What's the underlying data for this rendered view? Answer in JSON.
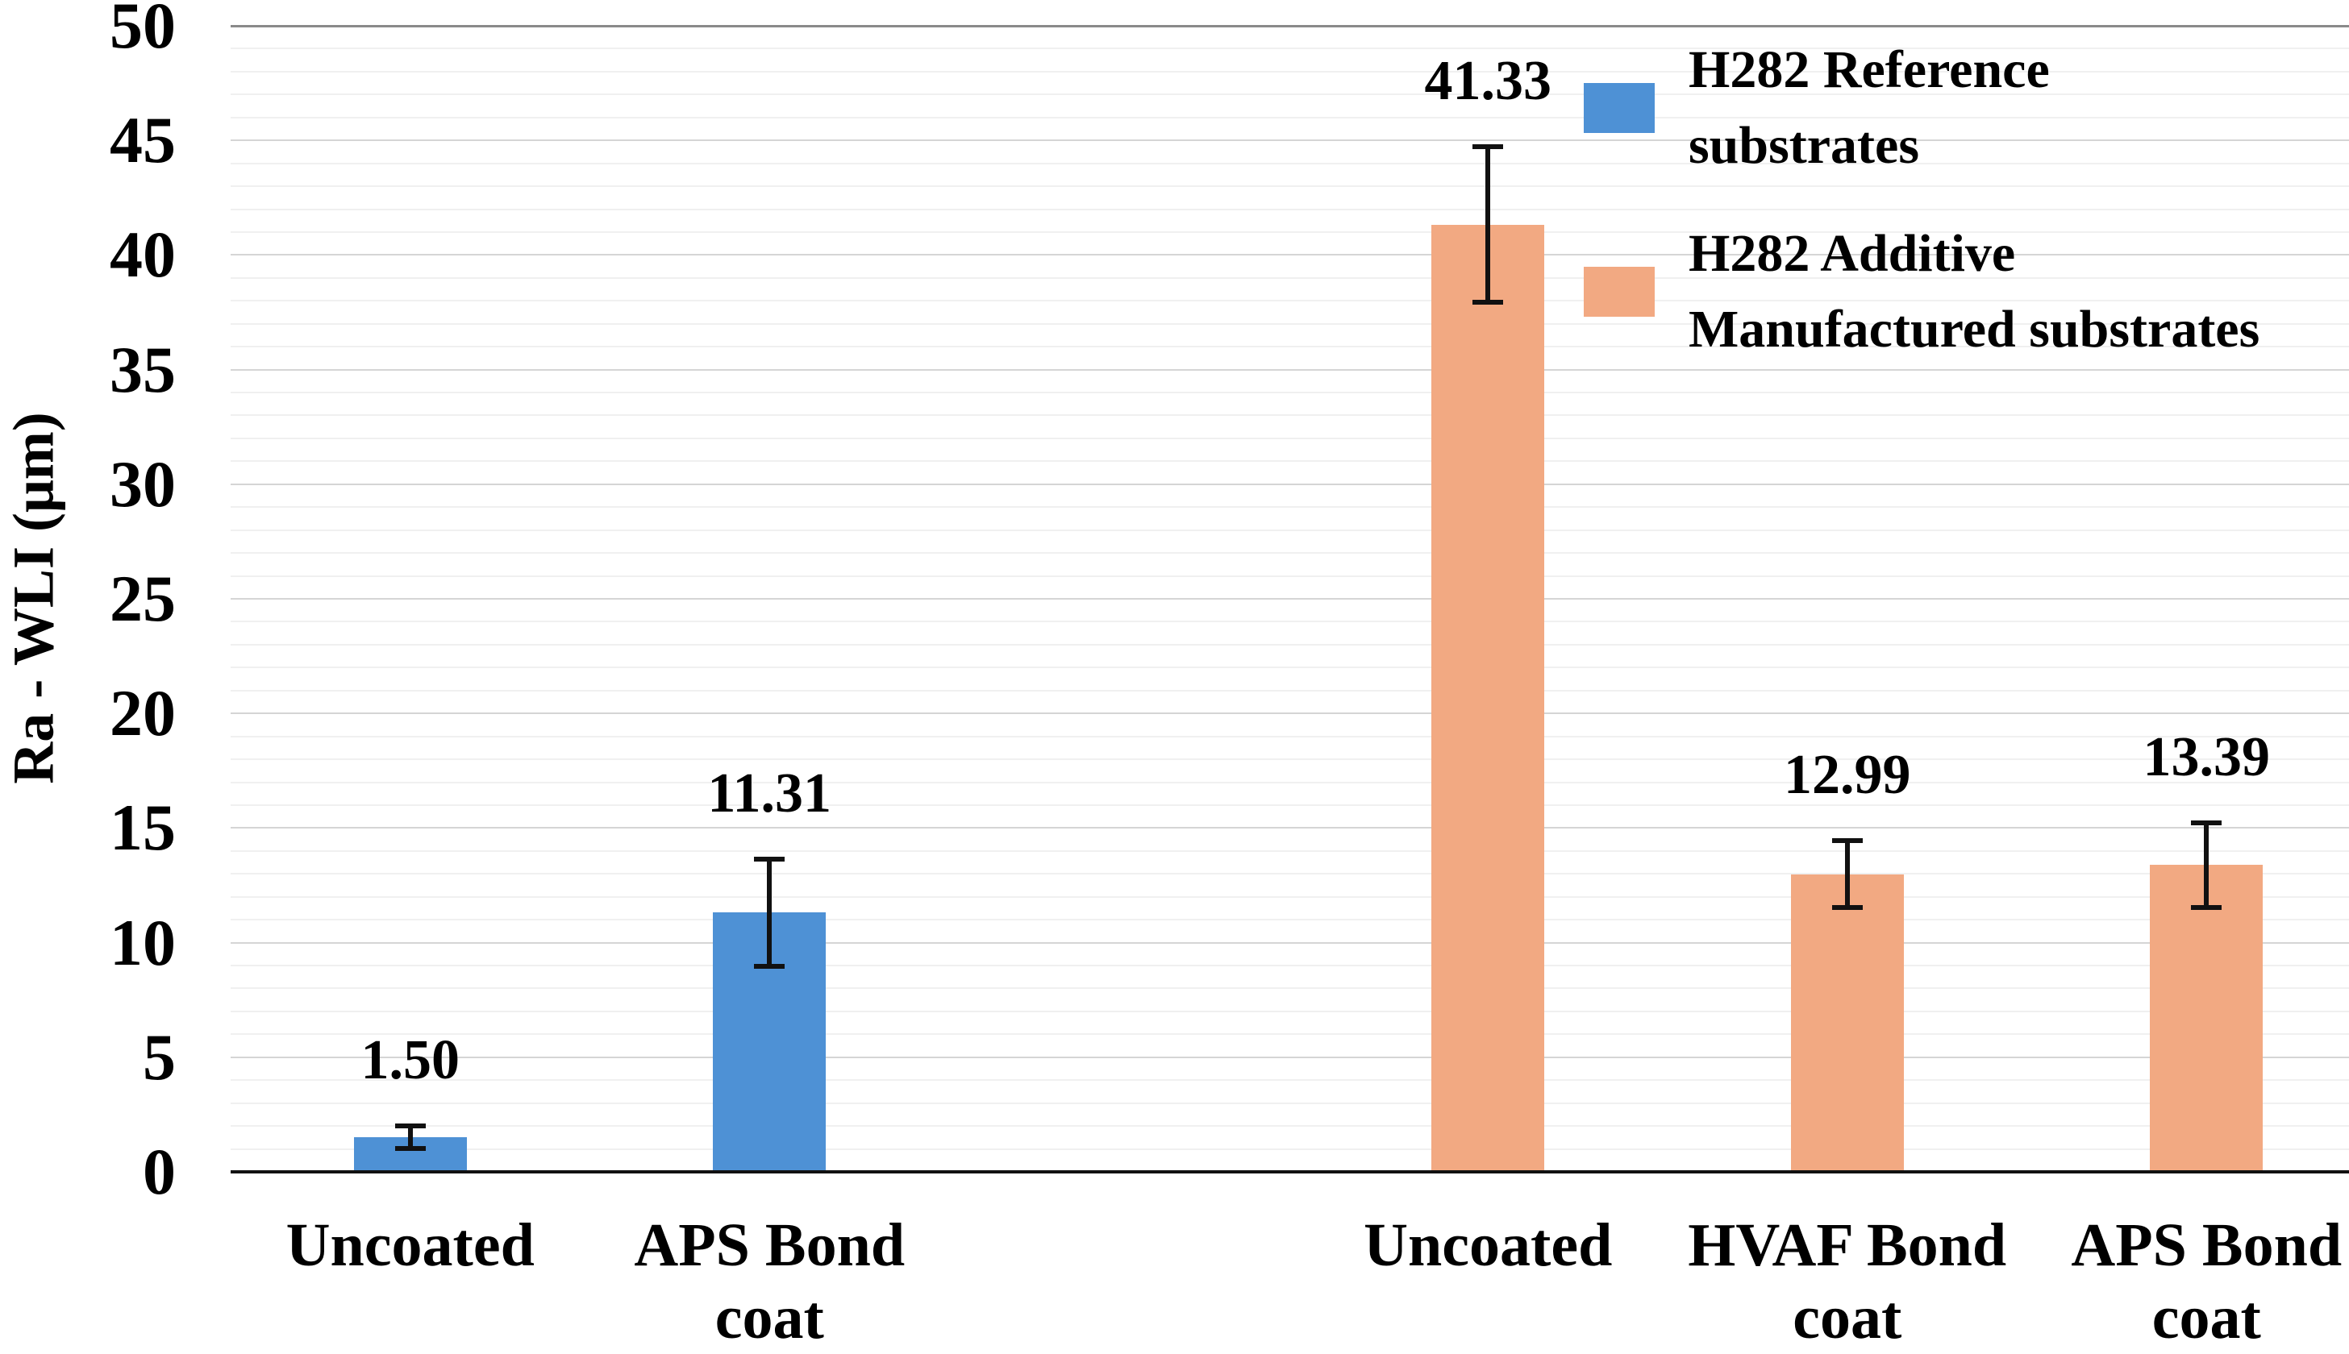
{
  "chart_data": {
    "type": "bar",
    "title": "",
    "xlabel": "",
    "ylabel": "Ra - WLI (μm)",
    "ylim": [
      0,
      50
    ],
    "y_major_tick_step": 5,
    "y_minor_grid_step": 1,
    "y_tick_labels": [
      "0",
      "5",
      "10",
      "15",
      "20",
      "25",
      "30",
      "35",
      "40",
      "45",
      "50"
    ],
    "grid": "horizontal, minor every 1 unit, major every 5 units",
    "legend_position": "top-right inside plot",
    "series": [
      {
        "name": "H282 Reference substrates",
        "color": "#4e91d5",
        "legend_line1": "H282 Reference",
        "legend_line2": "substrates"
      },
      {
        "name": "H282 Additive Manufactured substrates",
        "color": "#f2a982",
        "legend_line1": "H282 Additive",
        "legend_line2": "Manufactured substrates"
      }
    ],
    "bars": [
      {
        "slot": 0,
        "category": "Uncoated",
        "category_line1": "Uncoated",
        "category_line2": "",
        "series": 0,
        "value": 1.5,
        "label": "1.50",
        "error": 0.6
      },
      {
        "slot": 1,
        "category": "APS Bond coat",
        "category_line1": "APS Bond",
        "category_line2": "coat",
        "series": 0,
        "value": 11.31,
        "label": "11.31",
        "error": 2.45
      },
      {
        "slot": 3,
        "category": "Uncoated",
        "category_line1": "Uncoated",
        "category_line2": "",
        "series": 1,
        "value": 41.33,
        "label": "41.33",
        "error": 3.5
      },
      {
        "slot": 4,
        "category": "HVAF Bond coat",
        "category_line1": "HVAF Bond",
        "category_line2": "coat",
        "series": 1,
        "value": 12.99,
        "label": "12.99",
        "error": 1.55
      },
      {
        "slot": 5,
        "category": "APS Bond coat",
        "category_line1": "APS Bond",
        "category_line2": "coat",
        "series": 1,
        "value": 13.39,
        "label": "13.39",
        "error": 1.95
      }
    ]
  },
  "colors": {
    "background": "#ffffff",
    "blue_series": "#4e91d5",
    "orange_series": "#f2a982",
    "minor_gridline": "#f0f0f0",
    "major_gridline": "#d5d5d5",
    "top_border": "#8a8a8a",
    "axis_line": "#111111",
    "text": "#000000"
  }
}
